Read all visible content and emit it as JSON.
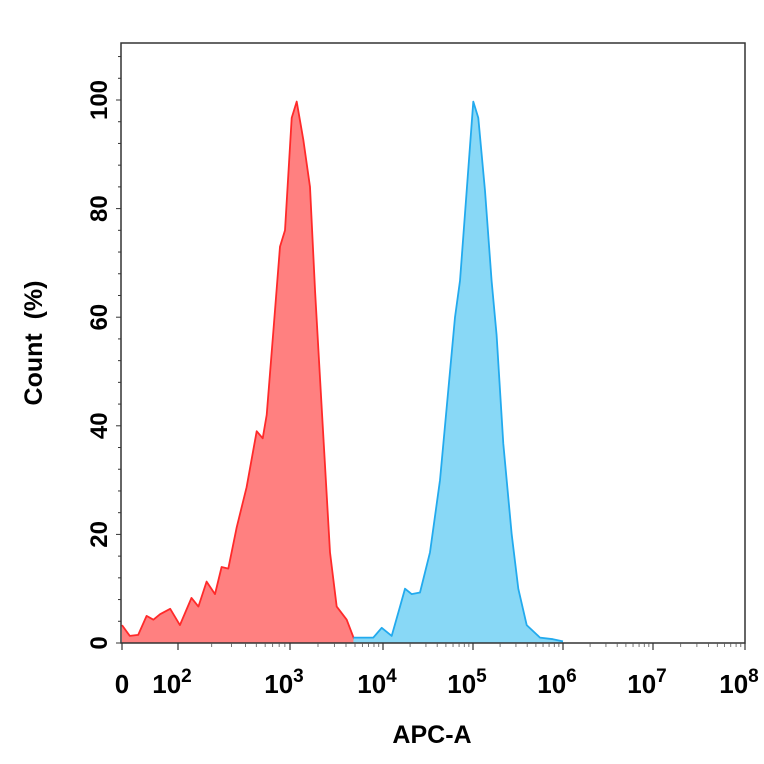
{
  "chart_data": {
    "type": "area",
    "title": "",
    "xlabel": "APC-A",
    "ylabel": "Count  (%)",
    "x_scale": "biexponential (linear near 0, log above 10^2)",
    "x_ticks": [
      {
        "value": 0,
        "base": "0",
        "exp": ""
      },
      {
        "value": 100,
        "base": "10",
        "exp": "2"
      },
      {
        "value": 1000,
        "base": "10",
        "exp": "3"
      },
      {
        "value": 10000,
        "base": "10",
        "exp": "4"
      },
      {
        "value": 100000,
        "base": "10",
        "exp": "5"
      },
      {
        "value": 1000000,
        "base": "10",
        "exp": "6"
      },
      {
        "value": 10000000,
        "base": "10",
        "exp": "7"
      },
      {
        "value": 100000000,
        "base": "10",
        "exp": "8"
      }
    ],
    "y_ticks": [
      "0",
      "20",
      "40",
      "60",
      "80",
      "100"
    ],
    "ylim": [
      0,
      110
    ],
    "xlim": [
      0,
      100000000
    ],
    "grid": false,
    "series": [
      {
        "color": "#ff2a2a",
        "fill": "#ff8080",
        "x": [
          0,
          14,
          29,
          44,
          56,
          68,
          86,
          104,
          132,
          152,
          180,
          214,
          245,
          281,
          334,
          410,
          504,
          570,
          619,
          710,
          815,
          902,
          1043,
          1180,
          1390,
          1640,
          1860,
          2190,
          2690,
          3180,
          4070,
          5000
        ],
        "y": [
          3.3,
          1.3,
          1.5,
          5,
          4.3,
          5.3,
          6.3,
          3.3,
          8.3,
          6.7,
          11.3,
          9,
          14,
          13.7,
          21.3,
          28.7,
          39,
          37.7,
          42,
          57.3,
          73,
          76,
          96.7,
          99.7,
          92.7,
          84,
          64.7,
          43.3,
          16.7,
          6.7,
          4.3,
          0.3
        ]
      },
      {
        "color": "#22aaee",
        "fill": "#88d8f6",
        "x": [
          4800,
          7870,
          9680,
          12500,
          15450,
          17550,
          20800,
          25800,
          33300,
          43000,
          55500,
          63100,
          71700,
          85100,
          100800,
          114500,
          136000,
          161000,
          183000,
          217000,
          269000,
          319000,
          395000,
          555000,
          774000,
          1000000
        ],
        "y": [
          1,
          1,
          2.8,
          1.3,
          6.7,
          10,
          9,
          9.3,
          16.7,
          30,
          50,
          60,
          66.7,
          83.3,
          99.7,
          96.7,
          83.3,
          66.7,
          56.7,
          36.7,
          20,
          10,
          3.3,
          1,
          0.7,
          0.3
        ]
      }
    ]
  }
}
